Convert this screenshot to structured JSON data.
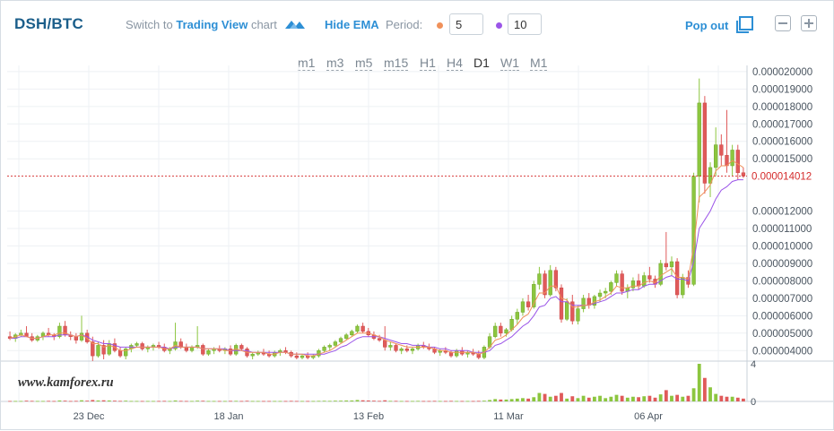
{
  "header": {
    "pair": "DSH/BTC",
    "switch_prefix": "Switch to",
    "switch_link": "Trading View",
    "switch_suffix": "chart",
    "tv_icon": "trading-view-mountain-icon",
    "hide_ema": "Hide EMA",
    "period_label": "Period:",
    "period_fast": "5",
    "period_slow": "10",
    "popout": "Pop out",
    "popout_icon": "popout-window-icon"
  },
  "timeframes": [
    "m1",
    "m3",
    "m5",
    "m15",
    "H1",
    "H4",
    "D1",
    "W1",
    "M1"
  ],
  "active_timeframe": "D1",
  "watermark": "www.kamforex.ru",
  "colors": {
    "up": "#8cc63f",
    "down": "#e05a5a",
    "ema_fast": "#f0915a",
    "ema_slow": "#9b55e8",
    "accent": "#2d8fd5",
    "current_price": "#d42b2b"
  },
  "chart_data": {
    "type": "candlestick",
    "y_ticks": [
      "0.000020000",
      "0.000019000",
      "0.000018000",
      "0.000017000",
      "0.000016000",
      "0.000015000",
      "0.000012000",
      "0.000011000",
      "0.000010000",
      "0.000009000",
      "0.000008000",
      "0.000007000",
      "0.000006000",
      "0.000005000",
      "0.000004000"
    ],
    "current_price": "0.000014012",
    "x_ticks": [
      "23 Dec",
      "18 Jan",
      "13 Feb",
      "11 Mar",
      "06 Apr"
    ],
    "volume_ticks": [
      "4",
      "0"
    ],
    "ylim": [
      3.5e-06,
      2.02e-05
    ],
    "volume_max": 4,
    "candles": [
      [
        4.8,
        5.1,
        4.6,
        4.7
      ],
      [
        4.7,
        5.0,
        4.5,
        4.9
      ],
      [
        4.9,
        5.2,
        4.8,
        5.0
      ],
      [
        5.0,
        5.4,
        4.8,
        4.8
      ],
      [
        4.8,
        5.0,
        4.5,
        4.6
      ],
      [
        4.6,
        4.9,
        4.5,
        4.8
      ],
      [
        4.8,
        5.1,
        4.6,
        5.0
      ],
      [
        5.0,
        5.3,
        4.8,
        4.9
      ],
      [
        4.9,
        5.0,
        4.6,
        4.8
      ],
      [
        4.8,
        5.6,
        4.7,
        5.4
      ],
      [
        5.4,
        5.7,
        4.8,
        4.9
      ],
      [
        4.9,
        5.1,
        4.6,
        4.8
      ],
      [
        4.8,
        5.0,
        4.4,
        4.6
      ],
      [
        4.6,
        6.0,
        4.5,
        5.0
      ],
      [
        5.0,
        5.2,
        4.4,
        4.5
      ],
      [
        4.5,
        4.8,
        3.4,
        3.7
      ],
      [
        3.7,
        4.5,
        3.6,
        4.3
      ],
      [
        4.3,
        4.6,
        3.5,
        3.8
      ],
      [
        3.8,
        4.6,
        3.7,
        4.4
      ],
      [
        4.4,
        4.7,
        3.9,
        4.0
      ],
      [
        4.0,
        4.2,
        3.6,
        3.7
      ],
      [
        3.7,
        4.2,
        3.5,
        4.1
      ],
      [
        4.1,
        4.4,
        3.9,
        4.3
      ],
      [
        4.3,
        4.5,
        4.2,
        4.4
      ],
      [
        4.4,
        4.5,
        4.0,
        4.1
      ],
      [
        4.1,
        4.3,
        3.9,
        4.2
      ],
      [
        4.2,
        4.4,
        4.0,
        4.3
      ],
      [
        4.3,
        4.5,
        4.1,
        4.2
      ],
      [
        4.2,
        4.4,
        3.9,
        4.0
      ],
      [
        4.0,
        4.2,
        3.8,
        4.1
      ],
      [
        4.1,
        5.6,
        4.0,
        4.5
      ],
      [
        4.5,
        4.7,
        4.1,
        4.2
      ],
      [
        4.2,
        4.4,
        3.9,
        4.0
      ],
      [
        4.0,
        4.3,
        3.9,
        4.2
      ],
      [
        4.2,
        5.4,
        4.1,
        4.3
      ],
      [
        4.3,
        4.4,
        3.7,
        3.8
      ],
      [
        3.8,
        4.1,
        3.7,
        4.0
      ],
      [
        4.0,
        4.2,
        3.8,
        4.1
      ],
      [
        4.1,
        4.3,
        3.9,
        4.0
      ],
      [
        4.0,
        4.2,
        3.8,
        4.1
      ],
      [
        4.1,
        4.3,
        3.7,
        3.8
      ],
      [
        3.8,
        4.4,
        3.7,
        4.3
      ],
      [
        4.3,
        4.4,
        4.0,
        4.1
      ],
      [
        4.1,
        4.2,
        3.6,
        3.7
      ],
      [
        3.7,
        3.9,
        3.5,
        3.8
      ],
      [
        3.8,
        4.0,
        3.7,
        3.9
      ],
      [
        3.9,
        4.1,
        3.7,
        3.8
      ],
      [
        3.8,
        4.0,
        3.6,
        3.7
      ],
      [
        3.7,
        4.0,
        3.6,
        3.9
      ],
      [
        3.9,
        4.1,
        3.7,
        4.0
      ],
      [
        4.0,
        4.2,
        3.8,
        3.9
      ],
      [
        3.9,
        4.0,
        3.6,
        3.7
      ],
      [
        3.7,
        3.9,
        3.5,
        3.6
      ],
      [
        3.6,
        3.8,
        3.5,
        3.7
      ],
      [
        3.7,
        3.9,
        3.5,
        3.6
      ],
      [
        3.6,
        3.8,
        3.5,
        3.7
      ],
      [
        3.7,
        4.1,
        3.6,
        4.0
      ],
      [
        4.0,
        4.3,
        3.9,
        4.2
      ],
      [
        4.2,
        4.4,
        4.0,
        4.3
      ],
      [
        4.3,
        4.6,
        4.2,
        4.5
      ],
      [
        4.5,
        4.8,
        4.4,
        4.7
      ],
      [
        4.7,
        5.0,
        4.6,
        4.9
      ],
      [
        4.9,
        5.2,
        4.8,
        5.1
      ],
      [
        5.1,
        5.5,
        5.0,
        5.4
      ],
      [
        5.4,
        5.6,
        5.0,
        5.1
      ],
      [
        5.1,
        5.3,
        4.8,
        4.9
      ],
      [
        4.9,
        5.1,
        4.6,
        4.7
      ],
      [
        4.7,
        4.9,
        4.5,
        4.6
      ],
      [
        4.6,
        5.4,
        4.0,
        4.2
      ],
      [
        4.2,
        4.5,
        4.0,
        4.3
      ],
      [
        4.3,
        4.4,
        3.9,
        4.0
      ],
      [
        4.0,
        4.2,
        3.8,
        4.1
      ],
      [
        4.1,
        4.3,
        3.9,
        4.0
      ],
      [
        4.0,
        4.2,
        3.8,
        4.1
      ],
      [
        4.1,
        4.4,
        4.0,
        4.3
      ],
      [
        4.3,
        4.5,
        4.1,
        4.2
      ],
      [
        4.2,
        4.4,
        4.0,
        4.1
      ],
      [
        4.1,
        4.2,
        3.8,
        3.9
      ],
      [
        3.9,
        4.1,
        3.7,
        4.0
      ],
      [
        4.0,
        4.2,
        3.8,
        3.9
      ],
      [
        3.9,
        4.0,
        3.6,
        3.7
      ],
      [
        3.7,
        4.1,
        3.6,
        4.0
      ],
      [
        4.0,
        4.2,
        3.7,
        3.8
      ],
      [
        3.8,
        4.0,
        3.6,
        3.9
      ],
      [
        3.9,
        4.1,
        3.7,
        3.8
      ],
      [
        3.8,
        4.0,
        3.5,
        3.6
      ],
      [
        3.6,
        4.3,
        3.5,
        4.2
      ],
      [
        4.2,
        5.0,
        4.1,
        4.8
      ],
      [
        4.8,
        5.6,
        4.7,
        5.4
      ],
      [
        5.4,
        5.6,
        4.8,
        5.0
      ],
      [
        5.0,
        5.3,
        4.8,
        5.2
      ],
      [
        5.2,
        6.0,
        5.1,
        5.8
      ],
      [
        5.8,
        6.4,
        5.5,
        6.2
      ],
      [
        6.2,
        7.0,
        6.0,
        6.8
      ],
      [
        6.8,
        7.2,
        6.3,
        6.5
      ],
      [
        6.5,
        8.0,
        6.4,
        7.8
      ],
      [
        7.8,
        8.8,
        7.5,
        8.4
      ],
      [
        8.4,
        8.6,
        7.0,
        7.2
      ],
      [
        7.2,
        8.9,
        7.1,
        8.6
      ],
      [
        8.6,
        8.8,
        7.4,
        7.6
      ],
      [
        7.6,
        7.8,
        5.6,
        5.8
      ],
      [
        5.8,
        7.0,
        5.7,
        6.8
      ],
      [
        6.8,
        7.2,
        5.5,
        5.7
      ],
      [
        5.7,
        6.6,
        5.5,
        6.4
      ],
      [
        6.4,
        7.2,
        6.2,
        7.0
      ],
      [
        7.0,
        7.3,
        6.4,
        6.6
      ],
      [
        6.6,
        7.2,
        6.4,
        7.1
      ],
      [
        7.1,
        7.5,
        6.8,
        7.3
      ],
      [
        7.3,
        7.6,
        7.0,
        7.4
      ],
      [
        7.4,
        8.0,
        7.2,
        7.9
      ],
      [
        7.9,
        8.6,
        7.7,
        8.4
      ],
      [
        8.4,
        8.6,
        7.2,
        7.4
      ],
      [
        7.4,
        7.8,
        7.0,
        7.6
      ],
      [
        7.6,
        8.2,
        7.4,
        8.0
      ],
      [
        8.0,
        8.4,
        7.5,
        7.7
      ],
      [
        7.7,
        8.5,
        7.6,
        8.3
      ],
      [
        8.3,
        8.8,
        7.9,
        8.1
      ],
      [
        8.1,
        8.3,
        7.6,
        7.8
      ],
      [
        7.8,
        9.2,
        7.7,
        9.0
      ],
      [
        9.0,
        10.8,
        8.6,
        8.8
      ],
      [
        8.8,
        9.4,
        8.3,
        9.1
      ],
      [
        9.1,
        9.3,
        7.0,
        7.2
      ],
      [
        7.2,
        8.4,
        7.0,
        8.2
      ],
      [
        8.2,
        8.6,
        7.6,
        7.8
      ],
      [
        7.8,
        14.2,
        7.7,
        14.0
      ],
      [
        14.0,
        19.6,
        12.5,
        18.2
      ],
      [
        18.2,
        18.6,
        13.0,
        13.6
      ],
      [
        13.6,
        14.8,
        12.8,
        14.5
      ],
      [
        14.5,
        16.8,
        14.0,
        15.8
      ],
      [
        15.8,
        16.4,
        14.6,
        15.2
      ],
      [
        15.2,
        17.8,
        14.2,
        14.6
      ],
      [
        14.6,
        15.8,
        14.0,
        15.5
      ],
      [
        15.5,
        15.8,
        13.8,
        14.2
      ],
      [
        14.2,
        14.5,
        13.9,
        14.012
      ]
    ],
    "ema5": [
      4.7,
      4.8,
      4.9,
      4.8,
      4.7,
      4.7,
      4.8,
      4.9,
      4.9,
      5.0,
      5.0,
      4.9,
      4.8,
      4.9,
      4.7,
      4.4,
      4.4,
      4.2,
      4.3,
      4.2,
      4.0,
      4.0,
      4.1,
      4.2,
      4.2,
      4.2,
      4.2,
      4.2,
      4.1,
      4.1,
      4.3,
      4.2,
      4.2,
      4.2,
      4.2,
      4.1,
      4.1,
      4.1,
      4.1,
      4.0,
      4.0,
      4.1,
      4.0,
      3.9,
      3.9,
      3.9,
      3.9,
      3.8,
      3.8,
      3.9,
      3.9,
      3.8,
      3.8,
      3.8,
      3.7,
      3.7,
      3.8,
      3.9,
      4.0,
      4.2,
      4.4,
      4.6,
      4.8,
      5.0,
      5.0,
      5.0,
      4.9,
      4.8,
      4.6,
      4.5,
      4.4,
      4.3,
      4.2,
      4.2,
      4.2,
      4.2,
      4.2,
      4.1,
      4.0,
      4.0,
      3.9,
      3.9,
      3.9,
      3.9,
      3.9,
      3.8,
      3.9,
      4.2,
      4.6,
      4.7,
      4.9,
      5.2,
      5.5,
      5.9,
      6.1,
      6.7,
      7.3,
      7.3,
      7.7,
      7.7,
      7.0,
      6.9,
      6.5,
      6.5,
      6.6,
      6.6,
      6.8,
      6.9,
      7.1,
      7.3,
      7.7,
      7.6,
      7.6,
      7.7,
      7.7,
      7.9,
      8.0,
      7.9,
      8.3,
      8.5,
      8.7,
      8.2,
      8.2,
      8.1,
      10.0,
      12.8,
      13.1,
      13.5,
      14.3,
      14.6,
      14.6,
      14.9,
      14.7,
      14.5
    ],
    "ema10": [
      4.7,
      4.7,
      4.8,
      4.8,
      4.7,
      4.7,
      4.8,
      4.8,
      4.8,
      4.9,
      4.9,
      4.9,
      4.8,
      4.9,
      4.8,
      4.6,
      4.5,
      4.4,
      4.4,
      4.3,
      4.2,
      4.2,
      4.2,
      4.2,
      4.2,
      4.2,
      4.2,
      4.2,
      4.2,
      4.1,
      4.2,
      4.2,
      4.2,
      4.2,
      4.2,
      4.1,
      4.1,
      4.1,
      4.1,
      4.1,
      4.0,
      4.0,
      4.0,
      4.0,
      3.9,
      3.9,
      3.9,
      3.9,
      3.9,
      3.9,
      3.9,
      3.8,
      3.8,
      3.8,
      3.8,
      3.8,
      3.8,
      3.8,
      3.9,
      4.0,
      4.2,
      4.3,
      4.5,
      4.7,
      4.8,
      4.8,
      4.8,
      4.8,
      4.7,
      4.6,
      4.5,
      4.4,
      4.4,
      4.3,
      4.3,
      4.3,
      4.2,
      4.2,
      4.1,
      4.1,
      4.0,
      4.0,
      4.0,
      4.0,
      3.9,
      3.9,
      3.9,
      4.0,
      4.3,
      4.4,
      4.6,
      4.8,
      5.1,
      5.4,
      5.6,
      6.0,
      6.5,
      6.6,
      7.0,
      7.1,
      6.8,
      6.8,
      6.6,
      6.6,
      6.6,
      6.6,
      6.7,
      6.8,
      6.9,
      7.1,
      7.3,
      7.3,
      7.4,
      7.5,
      7.5,
      7.7,
      7.8,
      7.8,
      8.0,
      8.2,
      8.3,
      8.1,
      8.1,
      8.0,
      9.1,
      11.0,
      11.5,
      12.0,
      12.7,
      13.2,
      13.4,
      13.7,
      13.8,
      13.8
    ],
    "volumes": [
      0.05,
      0.05,
      0.05,
      0.08,
      0.06,
      0.05,
      0.05,
      0.06,
      0.05,
      0.1,
      0.08,
      0.05,
      0.06,
      0.12,
      0.08,
      0.15,
      0.1,
      0.12,
      0.1,
      0.08,
      0.06,
      0.08,
      0.05,
      0.05,
      0.05,
      0.05,
      0.05,
      0.05,
      0.06,
      0.05,
      0.1,
      0.06,
      0.05,
      0.05,
      0.08,
      0.07,
      0.05,
      0.05,
      0.05,
      0.05,
      0.06,
      0.06,
      0.05,
      0.07,
      0.05,
      0.05,
      0.05,
      0.05,
      0.05,
      0.05,
      0.05,
      0.06,
      0.05,
      0.05,
      0.05,
      0.05,
      0.06,
      0.07,
      0.06,
      0.08,
      0.08,
      0.1,
      0.1,
      0.15,
      0.12,
      0.1,
      0.08,
      0.06,
      0.12,
      0.06,
      0.06,
      0.05,
      0.05,
      0.05,
      0.06,
      0.05,
      0.05,
      0.06,
      0.05,
      0.05,
      0.06,
      0.05,
      0.05,
      0.05,
      0.05,
      0.06,
      0.08,
      0.15,
      0.25,
      0.2,
      0.2,
      0.25,
      0.3,
      0.35,
      0.3,
      0.45,
      0.9,
      0.8,
      0.5,
      0.6,
      0.9,
      0.3,
      0.55,
      0.35,
      0.6,
      0.4,
      0.5,
      0.6,
      0.35,
      0.5,
      0.7,
      0.6,
      0.4,
      0.5,
      0.45,
      0.55,
      0.6,
      0.4,
      0.75,
      1.2,
      0.6,
      0.7,
      0.5,
      0.6,
      1.4,
      4.0,
      2.5,
      1.5,
      0.8,
      0.6,
      0.5,
      0.5,
      0.4,
      0.3
    ]
  }
}
